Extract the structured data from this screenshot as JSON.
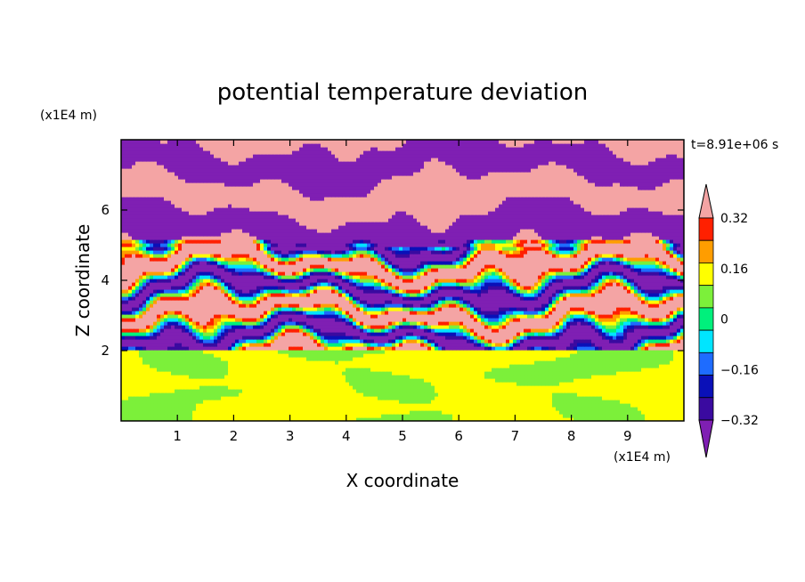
{
  "chart_data": {
    "type": "heatmap",
    "title": "potential temperature deviation",
    "xlabel": "X coordinate",
    "ylabel": "Z coordinate",
    "x_unit": "(x1E4 m)",
    "y_unit": "(x1E4 m)",
    "time_label": "t=8.91e+06 s",
    "xlim": [
      0,
      10
    ],
    "ylim": [
      0,
      8
    ],
    "xticks": [
      1,
      2,
      3,
      4,
      5,
      6,
      7,
      8,
      9
    ],
    "yticks": [
      2,
      4,
      6
    ],
    "colorbar": {
      "levels": [
        -0.4,
        -0.32,
        -0.24,
        -0.16,
        -0.08,
        0,
        0.08,
        0.16,
        0.24,
        0.32,
        0.4
      ],
      "tick_labels": [
        "0.32",
        "0.16",
        "0",
        "−0.16",
        "−0.32"
      ],
      "tick_values": [
        0.32,
        0.16,
        0,
        -0.16,
        -0.32
      ],
      "colors": [
        "#7f1fb3",
        "#3a0aa0",
        "#0a10b8",
        "#1e6cff",
        "#00e5ff",
        "#00f07c",
        "#7cf03a",
        "#ffff00",
        "#ff9d00",
        "#ff2000",
        "#f4a4a4"
      ],
      "extend": "both"
    },
    "description_bands": [
      {
        "zmin": 0,
        "zmax": 2,
        "values": "0 to 0.08"
      },
      {
        "zmin": 2,
        "zmax": 8,
        "values": "layered, alternating -0.4 and 0.4 with intermediate values"
      }
    ]
  }
}
